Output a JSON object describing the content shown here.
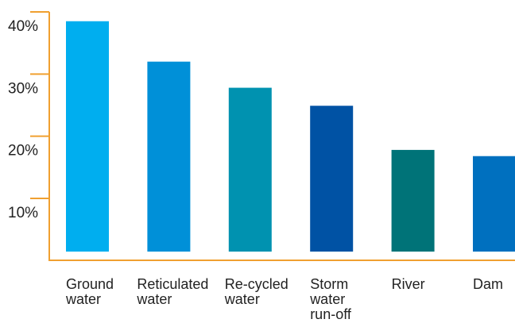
{
  "chart_data": {
    "type": "bar",
    "categories": [
      [
        "Ground",
        "water"
      ],
      [
        "Reticulated",
        "water"
      ],
      [
        "Re-cycled",
        "water"
      ],
      [
        "Storm",
        "water",
        "run-off"
      ],
      [
        "River"
      ],
      [
        "Dam"
      ]
    ],
    "values": [
      38.5,
      32.0,
      27.8,
      24.9,
      17.8,
      16.8
    ],
    "bar_colors": [
      "#00AEEF",
      "#0090D8",
      "#0092B0",
      "#0052A4",
      "#007378",
      "#0070BF"
    ],
    "axis_color": "#F0A030",
    "y_ticks": [
      10,
      20,
      30,
      40
    ],
    "y_tick_labels": [
      "10%",
      "20%",
      "30%",
      "40%"
    ],
    "ylim": [
      0,
      42
    ],
    "grid": false,
    "title": "",
    "xlabel": "",
    "ylabel": ""
  }
}
